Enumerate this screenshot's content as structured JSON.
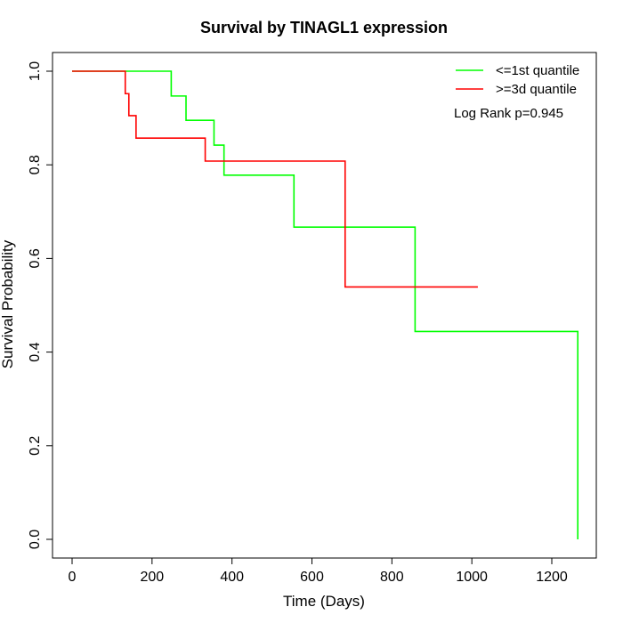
{
  "chart_data": {
    "type": "line",
    "step": true,
    "title": "Survival by TINAGL1 expression",
    "xlabel": "Time (Days)",
    "ylabel": "Survival Probability",
    "xlim": [
      0,
      1300
    ],
    "ylim": [
      0,
      1.0
    ],
    "xticks": [
      "0",
      "200",
      "400",
      "600",
      "800",
      "1000",
      "1200"
    ],
    "yticks": [
      "0.0",
      "0.2",
      "0.4",
      "0.6",
      "0.8",
      "1.0"
    ],
    "grid": false,
    "legend_position": "top-right",
    "annotation": "Log Rank p=0.945",
    "series": [
      {
        "name": "<=1st quantile",
        "color": "#00ff00",
        "x": [
          0,
          248,
          285,
          355,
          380,
          555,
          858,
          1265
        ],
        "y": [
          1.0,
          0.947,
          0.895,
          0.842,
          0.778,
          0.667,
          0.444,
          0.0
        ]
      },
      {
        "name": ">=3d quantile",
        "color": "#ff0000",
        "end_x": 1015,
        "x": [
          0,
          133,
          142,
          160,
          333,
          683
        ],
        "y": [
          1.0,
          0.952,
          0.905,
          0.857,
          0.808,
          0.539
        ]
      }
    ]
  }
}
